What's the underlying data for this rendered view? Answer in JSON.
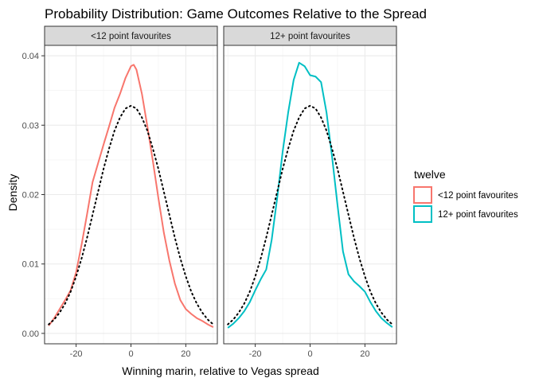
{
  "chart_data": {
    "type": "line",
    "title": "Probability Distribution: Game Outcomes Relative to the Spread",
    "xlabel": "Winning marin, relative to Vegas spread",
    "ylabel": "Density",
    "xlim": [
      -31.5,
      31.5
    ],
    "ylim": [
      -0.0015,
      0.0415
    ],
    "x_ticks": [
      -20,
      0,
      20
    ],
    "x_tick_labels": [
      "-20",
      "0",
      "20"
    ],
    "y_ticks": [
      0.0,
      0.01,
      0.02,
      0.03,
      0.04
    ],
    "y_tick_labels": [
      "0.00",
      "0.01",
      "0.02",
      "0.03",
      "0.04"
    ],
    "grid": true,
    "legend": {
      "title": "twelve",
      "position": "right",
      "entries": [
        {
          "label": "<12 point favourites",
          "color": "#F8766D"
        },
        {
          "label": "12+ point favourites",
          "color": "#00BFC4"
        }
      ]
    },
    "panels": [
      {
        "strip": "<12 point favourites",
        "series": [
          {
            "name": "<12 point favourites",
            "color": "#F8766D",
            "style": "solid",
            "x": [
              -30,
              -28,
              -26,
              -24,
              -22,
              -20,
              -18,
              -16,
              -14,
              -12,
              -10,
              -8,
              -6,
              -4,
              -2,
              0,
              1,
              2,
              4,
              6,
              8,
              10,
              12,
              14,
              16,
              18,
              20,
              22,
              24,
              26,
              28,
              30
            ],
            "y": [
              0.0011,
              0.0022,
              0.0035,
              0.0048,
              0.0062,
              0.0088,
              0.0128,
              0.0172,
              0.0218,
              0.0245,
              0.0272,
              0.0298,
              0.0325,
              0.0345,
              0.0368,
              0.0385,
              0.0387,
              0.038,
              0.0345,
              0.0298,
              0.0248,
              0.0195,
              0.0145,
              0.0105,
              0.0072,
              0.0048,
              0.0035,
              0.0028,
              0.0022,
              0.0018,
              0.0013,
              0.0009
            ]
          },
          {
            "name": "normal reference",
            "color": "#000000",
            "style": "dotted",
            "x": [
              -30,
              -28,
              -26,
              -24,
              -22,
              -20,
              -18,
              -16,
              -14,
              -12,
              -10,
              -8,
              -6,
              -4,
              -2,
              0,
              2,
              4,
              6,
              8,
              10,
              12,
              14,
              16,
              18,
              20,
              22,
              24,
              26,
              28,
              30
            ],
            "y": [
              0.0013,
              0.002,
              0.003,
              0.0043,
              0.006,
              0.0082,
              0.0108,
              0.0138,
              0.0171,
              0.0204,
              0.0237,
              0.0266,
              0.0292,
              0.0311,
              0.0324,
              0.0328,
              0.0324,
              0.0311,
              0.0292,
              0.0266,
              0.0237,
              0.0204,
              0.0171,
              0.0138,
              0.0108,
              0.0082,
              0.006,
              0.0043,
              0.003,
              0.002,
              0.0013
            ]
          }
        ]
      },
      {
        "strip": "12+ point favourites",
        "series": [
          {
            "name": "12+ point favourites",
            "color": "#00BFC4",
            "style": "solid",
            "x": [
              -30,
              -28,
              -26,
              -24,
              -22,
              -20,
              -18,
              -16,
              -14,
              -12,
              -10,
              -8,
              -6,
              -4,
              -2,
              0,
              2,
              4,
              6,
              8,
              10,
              12,
              14,
              16,
              18,
              20,
              22,
              24,
              26,
              28,
              30
            ],
            "y": [
              0.0008,
              0.0014,
              0.0022,
              0.0032,
              0.0045,
              0.0062,
              0.0078,
              0.0092,
              0.0135,
              0.0195,
              0.0262,
              0.0318,
              0.0365,
              0.039,
              0.0385,
              0.0372,
              0.037,
              0.0362,
              0.0318,
              0.0255,
              0.0185,
              0.0118,
              0.0085,
              0.0075,
              0.0068,
              0.006,
              0.0045,
              0.0032,
              0.0022,
              0.0015,
              0.0009
            ]
          },
          {
            "name": "normal reference",
            "color": "#000000",
            "style": "dotted",
            "x": [
              -30,
              -28,
              -26,
              -24,
              -22,
              -20,
              -18,
              -16,
              -14,
              -12,
              -10,
              -8,
              -6,
              -4,
              -2,
              0,
              2,
              4,
              6,
              8,
              10,
              12,
              14,
              16,
              18,
              20,
              22,
              24,
              26,
              28,
              30
            ],
            "y": [
              0.0013,
              0.002,
              0.003,
              0.0043,
              0.006,
              0.0082,
              0.0108,
              0.0138,
              0.0171,
              0.0204,
              0.0237,
              0.0266,
              0.0292,
              0.0311,
              0.0324,
              0.0328,
              0.0324,
              0.0311,
              0.0292,
              0.0266,
              0.0237,
              0.0204,
              0.0171,
              0.0138,
              0.0108,
              0.0082,
              0.006,
              0.0043,
              0.003,
              0.002,
              0.0013
            ]
          }
        ]
      }
    ]
  }
}
